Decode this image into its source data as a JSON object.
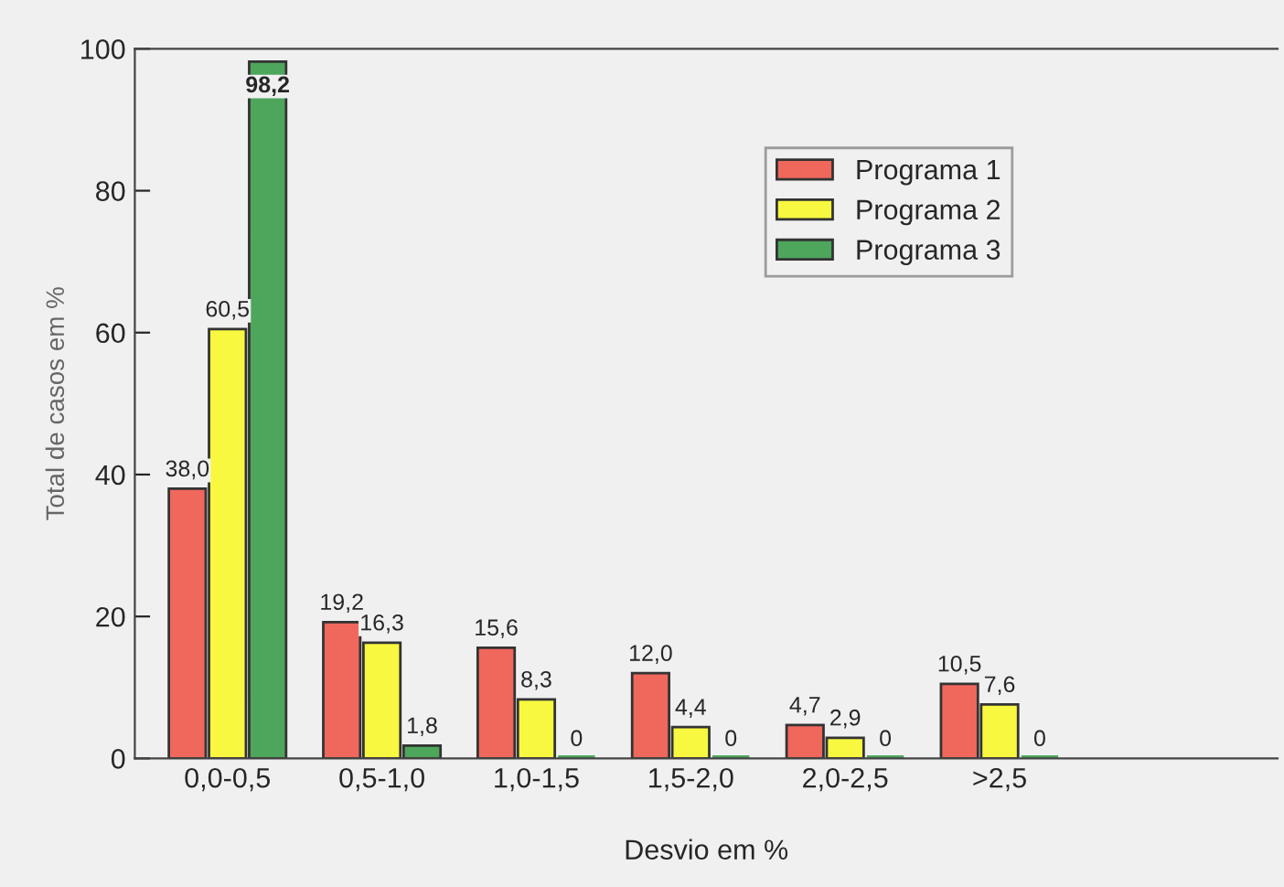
{
  "chart_data": {
    "type": "bar",
    "xlabel": "Desvio em %",
    "ylabel": "Total de casos em %",
    "categories": [
      "0,0-0,5",
      "0,5-1,0",
      "1,0-1,5",
      "1,5-2,0",
      "2,0-2,5",
      ">2,5"
    ],
    "series": [
      {
        "name": "Programa 1",
        "color": "#f0675c",
        "values": [
          38.0,
          19.2,
          15.6,
          12.0,
          4.7,
          10.5
        ],
        "value_labels": [
          "38,0",
          "19,2",
          "15,6",
          "12,0",
          "4,7",
          "10,5"
        ]
      },
      {
        "name": "Programa 2",
        "color": "#f8f840",
        "values": [
          60.5,
          16.3,
          8.3,
          4.4,
          2.9,
          7.6
        ],
        "value_labels": [
          "60,5",
          "16,3",
          "8,3",
          "4,4",
          "2,9",
          "7,6"
        ]
      },
      {
        "name": "Programa 3",
        "color": "#4ea55c",
        "values": [
          98.2,
          1.8,
          0,
          0,
          0,
          0
        ],
        "value_labels": [
          "98,2",
          "1,8",
          "0",
          "0",
          "0",
          "0"
        ]
      }
    ],
    "ylim": [
      0,
      100
    ],
    "yticks": [
      0,
      20,
      40,
      60,
      80,
      100
    ],
    "grid": false,
    "legend": "top right"
  }
}
